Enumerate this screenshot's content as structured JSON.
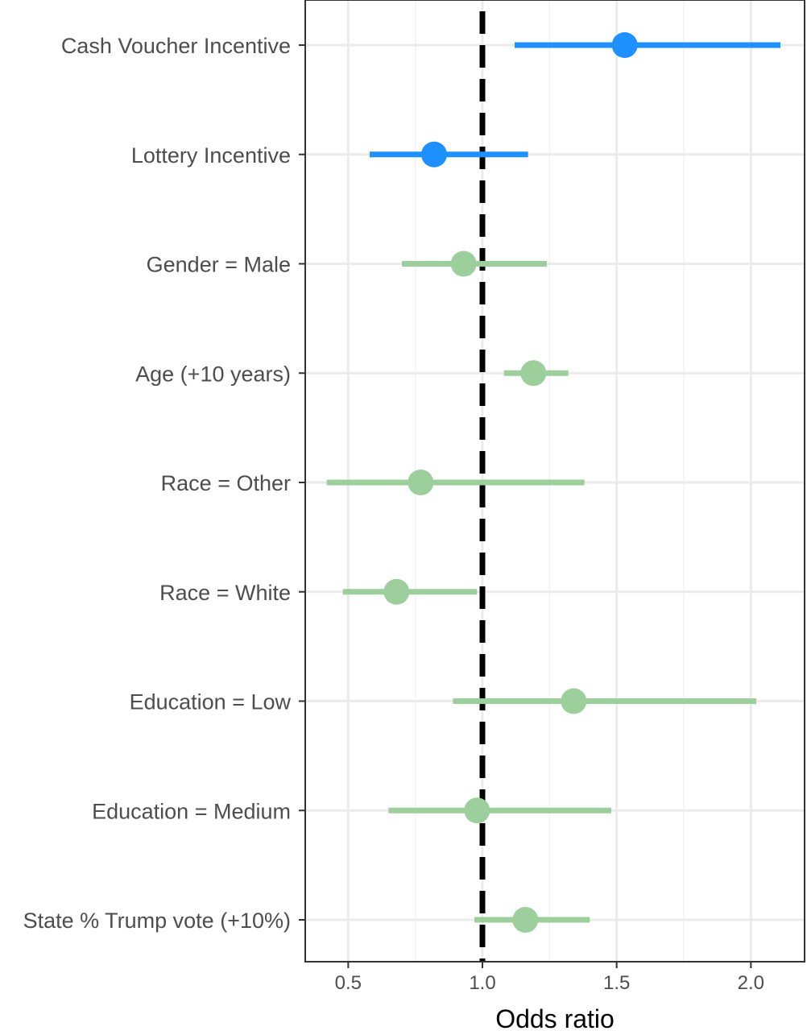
{
  "chart_data": {
    "type": "forest",
    "title": "",
    "xlabel": "Odds ratio",
    "ylabel": "",
    "xlim": [
      0.34,
      2.2
    ],
    "x_ticks": [
      0.5,
      1.0,
      1.5,
      2.0
    ],
    "x_tick_labels": [
      "0.5",
      "1.0",
      "1.5",
      "2.0"
    ],
    "reference_line": 1.0,
    "grid": true,
    "legend": "none",
    "colors": {
      "incentive": "#1e90ff",
      "covariate": "#9ccf9c"
    },
    "rows": [
      {
        "label": "Cash Voucher Incentive",
        "estimate": 1.53,
        "lower": 1.12,
        "upper": 2.11,
        "group": "incentive"
      },
      {
        "label": "Lottery Incentive",
        "estimate": 0.82,
        "lower": 0.58,
        "upper": 1.17,
        "group": "incentive"
      },
      {
        "label": "Gender = Male",
        "estimate": 0.93,
        "lower": 0.7,
        "upper": 1.24,
        "group": "covariate"
      },
      {
        "label": "Age (+10 years)",
        "estimate": 1.19,
        "lower": 1.08,
        "upper": 1.32,
        "group": "covariate"
      },
      {
        "label": "Race = Other",
        "estimate": 0.77,
        "lower": 0.42,
        "upper": 1.38,
        "group": "covariate"
      },
      {
        "label": "Race = White",
        "estimate": 0.68,
        "lower": 0.48,
        "upper": 0.98,
        "group": "covariate"
      },
      {
        "label": "Education = Low",
        "estimate": 1.34,
        "lower": 0.89,
        "upper": 2.02,
        "group": "covariate"
      },
      {
        "label": "Education = Medium",
        "estimate": 0.98,
        "lower": 0.65,
        "upper": 1.48,
        "group": "covariate"
      },
      {
        "label": "State % Trump vote (+10%)",
        "estimate": 1.16,
        "lower": 0.97,
        "upper": 1.4,
        "group": "covariate"
      }
    ]
  }
}
